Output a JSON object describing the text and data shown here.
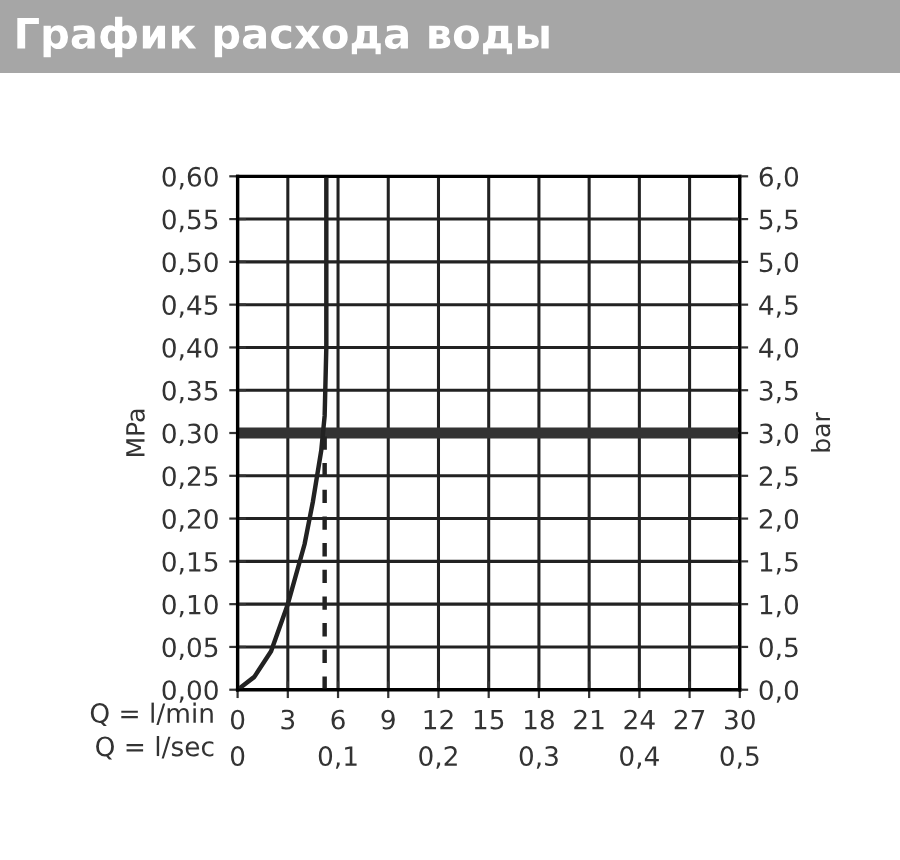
{
  "chart_data": {
    "type": "line",
    "title": "График расхода воды",
    "xlabel": "Q = l/min",
    "ylabel": "MPa",
    "y2label": "bar",
    "x2label": "Q = l/sec",
    "series": [
      {
        "color": "#222222",
        "x": [
          0,
          1,
          2,
          3,
          4,
          4.5,
          5.0,
          5.2,
          5.3,
          5.3
        ],
        "values": [
          0,
          0.015,
          0.045,
          0.1,
          0.17,
          0.22,
          0.28,
          0.32,
          0.4,
          0.6
        ],
        "line_style": "solid"
      },
      {
        "color": "#222222",
        "x": [
          5.2,
          5.2
        ],
        "values": [
          0,
          0.3
        ],
        "line_style": "dashed"
      }
    ],
    "ref_lines": [
      {
        "axis": "y",
        "value": 0.3,
        "color": "#333333"
      }
    ],
    "xlim": [
      0,
      30
    ],
    "xticks": [
      0,
      3,
      6,
      9,
      12,
      15,
      18,
      21,
      24,
      27,
      30
    ],
    "x2lim": [
      0,
      0.5
    ],
    "x2ticks": [
      0,
      {
        "value": 0.1,
        "label": "0,1"
      },
      {
        "value": 0.2,
        "label": "0,2"
      },
      {
        "value": 0.3,
        "label": "0,3"
      },
      {
        "value": 0.4,
        "label": "0,4"
      },
      {
        "value": 0.5,
        "label": "0,5"
      }
    ],
    "ylim": [
      0,
      0.6
    ],
    "yticks": [
      {
        "value": 0,
        "label": "0,00"
      },
      {
        "value": 0.05,
        "label": "0,05"
      },
      {
        "value": 0.1,
        "label": "0,10"
      },
      {
        "value": 0.15,
        "label": "0,15"
      },
      {
        "value": 0.2,
        "label": "0,20"
      },
      {
        "value": 0.25,
        "label": "0,25"
      },
      {
        "value": 0.3,
        "label": "0,30"
      },
      {
        "value": 0.35,
        "label": "0,35"
      },
      {
        "value": 0.4,
        "label": "0,40"
      },
      {
        "value": 0.45,
        "label": "0,45"
      },
      {
        "value": 0.5,
        "label": "0,50"
      },
      {
        "value": 0.55,
        "label": "0,55"
      },
      {
        "value": 0.6,
        "label": "0,60"
      }
    ],
    "y2lim": [
      0,
      6
    ],
    "y2ticks": [
      {
        "value": 0,
        "label": "0,0"
      },
      {
        "value": 0.5,
        "label": "0,5"
      },
      {
        "value": 1,
        "label": "1,0"
      },
      {
        "value": 1.5,
        "label": "1,5"
      },
      {
        "value": 2,
        "label": "2,0"
      },
      {
        "value": 2.5,
        "label": "2,5"
      },
      {
        "value": 3,
        "label": "3,0"
      },
      {
        "value": 3.5,
        "label": "3,5"
      },
      {
        "value": 4,
        "label": "4,0"
      },
      {
        "value": 4.5,
        "label": "4,5"
      },
      {
        "value": 5,
        "label": "5,0"
      },
      {
        "value": 5.5,
        "label": "5,5"
      },
      {
        "value": 6,
        "label": "6,0"
      }
    ],
    "grid": true,
    "legend": false,
    "marker": "none"
  }
}
